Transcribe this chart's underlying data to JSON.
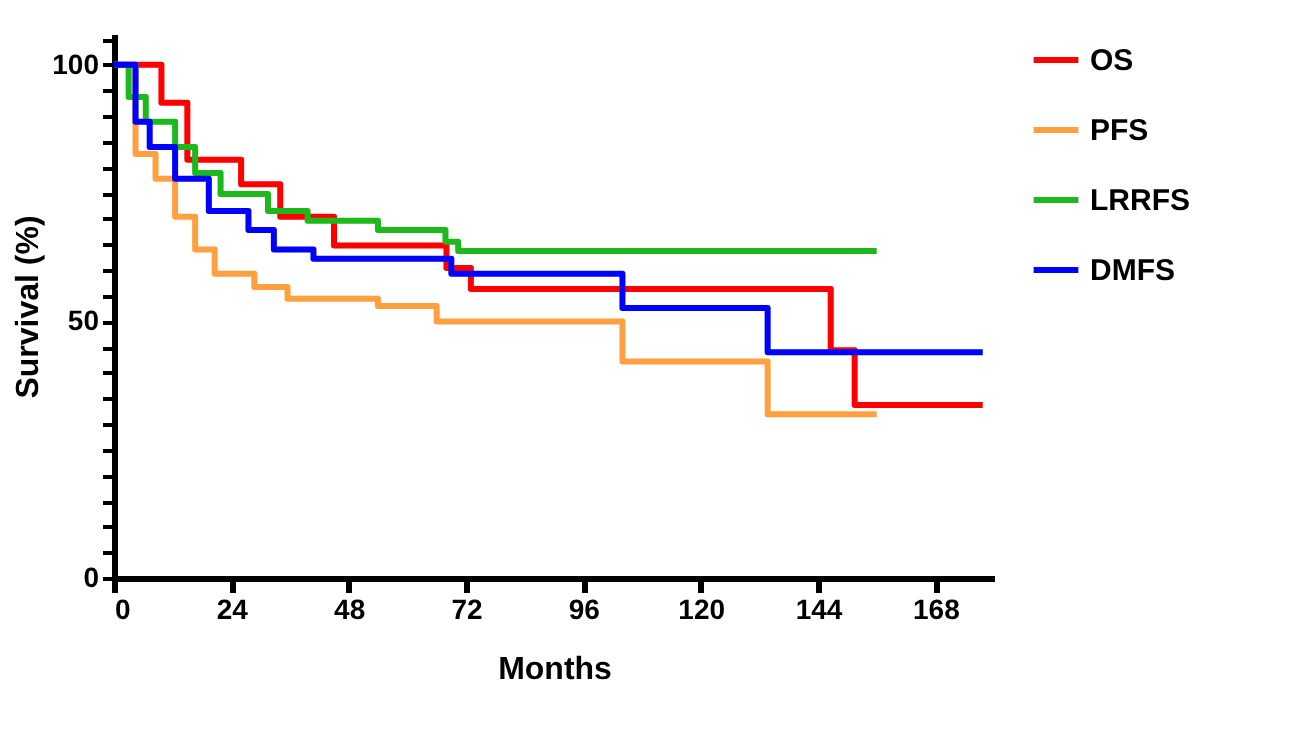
{
  "chart_data": {
    "type": "step",
    "xlabel": "Months",
    "ylabel": "Survival (%)",
    "xlim": [
      0,
      180
    ],
    "xticks": [
      0,
      24,
      48,
      72,
      96,
      120,
      144,
      168
    ],
    "ylim": [
      0,
      106
    ],
    "yticks": [
      0,
      {
        "value": 5,
        "label": null
      },
      {
        "value": 10,
        "label": null
      },
      {
        "value": 15,
        "label": null
      },
      {
        "value": 20,
        "label": null
      },
      {
        "value": 25,
        "label": null
      },
      {
        "value": 30,
        "label": null
      },
      {
        "value": 35,
        "label": null
      },
      {
        "value": 40,
        "label": null
      },
      {
        "value": 45,
        "label": null
      },
      50,
      {
        "value": 55,
        "label": null
      },
      {
        "value": 60,
        "label": null
      },
      {
        "value": 65,
        "label": null
      },
      {
        "value": 70,
        "label": null
      },
      {
        "value": 75,
        "label": null
      },
      {
        "value": 80,
        "label": null
      },
      {
        "value": 85,
        "label": null
      },
      {
        "value": 90,
        "label": null
      },
      {
        "value": 95,
        "label": null
      },
      100,
      {
        "value": 105,
        "label": null
      }
    ],
    "legend": "right",
    "grid": false,
    "marker": "none",
    "line_style": "solid",
    "series": [
      {
        "name": "OS",
        "color": "#ff0000",
        "x": [
          0,
          9.7,
          15,
          26,
          34,
          45,
          68,
          73,
          146.6,
          151.5,
          177.7
        ],
        "values": [
          100,
          92.6,
          81.5,
          76.7,
          70.4,
          64.8,
          60.4,
          56.3,
          44.4,
          33.7,
          33.7
        ]
      },
      {
        "name": "PFS",
        "color": "#ffa040",
        "x": [
          0,
          4.4,
          8.5,
          12.5,
          16.6,
          20.6,
          28.7,
          35.5,
          54,
          66,
          104,
          133.7,
          156
        ],
        "values": [
          100,
          82.6,
          77.8,
          70.4,
          64,
          59.3,
          56.7,
          54.4,
          53,
          50,
          42.2,
          31.9,
          31.9
        ]
      },
      {
        "name": "LRRFS",
        "color": "#1cb81c",
        "x": [
          0,
          3,
          6.5,
          12.5,
          16.6,
          21.8,
          31.5,
          39.6,
          54,
          67.8,
          70.4,
          156
        ],
        "values": [
          100,
          93.7,
          88.9,
          84,
          78.9,
          74.8,
          71.5,
          69.6,
          67.8,
          65.5,
          63.7,
          63.7
        ]
      },
      {
        "name": "DMFS",
        "color": "#0000ff",
        "x": [
          0,
          4.4,
          7.3,
          12.5,
          19.4,
          27.5,
          32.7,
          40.8,
          69,
          104,
          133.7,
          177.7
        ],
        "values": [
          100,
          88.9,
          84,
          77.8,
          71.5,
          67.8,
          64,
          62.2,
          59.3,
          52.6,
          44,
          44
        ]
      }
    ]
  }
}
